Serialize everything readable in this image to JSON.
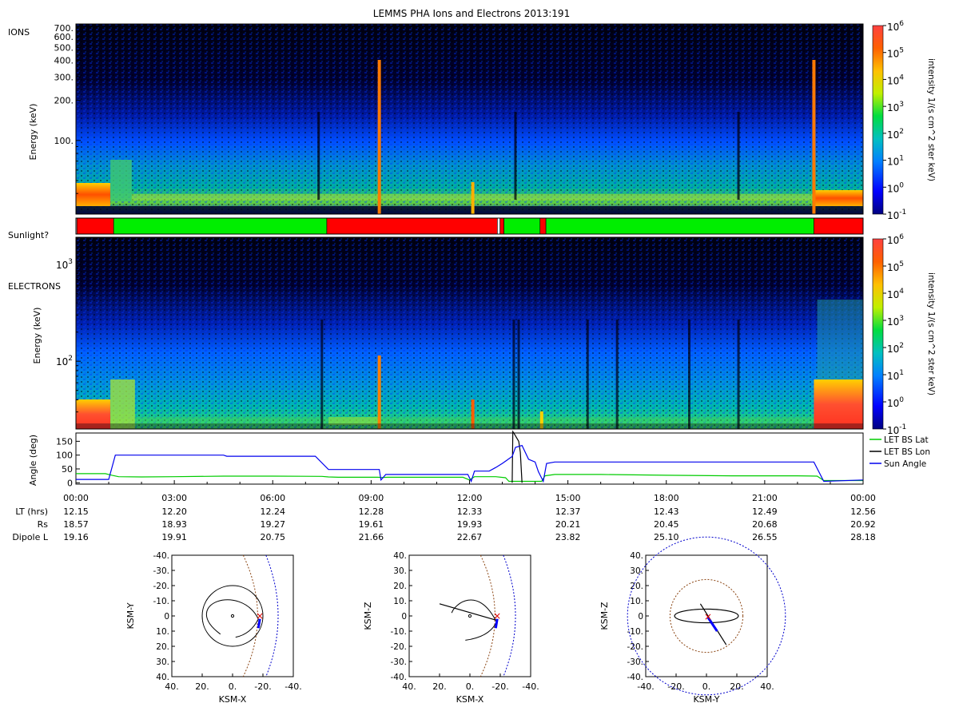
{
  "title": "LEMMS PHA Ions and Electrons  2013:191",
  "ions_panel": {
    "label": "IONS",
    "ylabel": "Energy (keV)",
    "yticks": [
      "700.",
      "600.",
      "500.",
      "400.",
      "300.",
      "200.",
      "100."
    ],
    "ytick_values": [
      700,
      600,
      500,
      400,
      300,
      200,
      100
    ],
    "yrange": [
      28,
      750
    ],
    "colorbar_label": "intensity 1/(s cm^2 ster keV)"
  },
  "sunlight_panel": {
    "label": "Sunlight?",
    "segments": [
      {
        "start_hr": 0.0,
        "end_hr": 0.03,
        "state": "unknown"
      },
      {
        "start_hr": 0.03,
        "end_hr": 1.15,
        "state": "dark"
      },
      {
        "start_hr": 1.15,
        "end_hr": 7.65,
        "state": "sun"
      },
      {
        "start_hr": 7.65,
        "end_hr": 12.85,
        "state": "dark"
      },
      {
        "start_hr": 12.85,
        "end_hr": 12.93,
        "state": "unknown"
      },
      {
        "start_hr": 12.93,
        "end_hr": 13.05,
        "state": "dark"
      },
      {
        "start_hr": 13.05,
        "end_hr": 14.15,
        "state": "sun"
      },
      {
        "start_hr": 14.15,
        "end_hr": 14.33,
        "state": "dark"
      },
      {
        "start_hr": 14.33,
        "end_hr": 22.5,
        "state": "sun"
      },
      {
        "start_hr": 22.5,
        "end_hr": 24.0,
        "state": "dark"
      }
    ],
    "colors": {
      "sun": "#00ee00",
      "dark": "#ff0000",
      "unknown": "#ffffff"
    }
  },
  "electrons_panel": {
    "label": "ELECTRONS",
    "ylabel": "Energy (keV)",
    "yticks": [
      {
        "base": "10",
        "exp": "3",
        "value": 1000
      },
      {
        "base": "10",
        "exp": "2",
        "value": 100
      }
    ],
    "yrange": [
      20,
      1900
    ],
    "colorbar_label": "intensity 1/(s cm^2 ster keV)"
  },
  "colorbar": {
    "ticks": [
      {
        "base": "10",
        "exp": "6"
      },
      {
        "base": "10",
        "exp": "5"
      },
      {
        "base": "10",
        "exp": "4"
      },
      {
        "base": "10",
        "exp": "3"
      },
      {
        "base": "10",
        "exp": "2"
      },
      {
        "base": "10",
        "exp": "1"
      },
      {
        "base": "10",
        "exp": "0"
      },
      {
        "base": "10",
        "exp": "-1"
      }
    ],
    "range_log10": [
      -1,
      6
    ]
  },
  "chart_data": [
    {
      "type": "heatmap",
      "title": "LEMMS PHA Ions and Electrons  2013:191",
      "name": "IONS",
      "ylabel": "Energy (keV)",
      "ylim": [
        28,
        750
      ],
      "xlim_hr": [
        0,
        24
      ],
      "zlabel": "intensity 1/(s cm^2 ster keV)",
      "zlim_log10": [
        -1,
        6
      ]
    },
    {
      "type": "heatmap",
      "name": "ELECTRONS",
      "ylabel": "Energy (keV)",
      "ylim": [
        20,
        1900
      ],
      "xlim_hr": [
        0,
        24
      ],
      "zlabel": "intensity 1/(s cm^2 ster keV)",
      "zlim_log10": [
        -1,
        6
      ]
    },
    {
      "type": "line",
      "ylabel": "Angle (deg)",
      "yticks": [
        0,
        50,
        100,
        150
      ],
      "ylim": [
        -5,
        180
      ],
      "xlim_hr": [
        0,
        24
      ],
      "series": [
        {
          "name": "LET BS Lat",
          "color": "#00cc00",
          "points": [
            [
              0,
              33
            ],
            [
              0.9,
              33
            ],
            [
              1.1,
              27
            ],
            [
              1.3,
              22
            ],
            [
              2,
              21
            ],
            [
              3,
              22
            ],
            [
              4.5,
              24
            ],
            [
              6,
              24
            ],
            [
              7.5,
              23
            ],
            [
              7.7,
              21
            ],
            [
              8,
              20
            ],
            [
              9.2,
              20
            ],
            [
              9.35,
              19
            ],
            [
              9.5,
              20
            ],
            [
              11.8,
              20
            ],
            [
              12.0,
              10
            ],
            [
              12.15,
              22
            ],
            [
              12.8,
              22
            ],
            [
              13.1,
              18
            ],
            [
              13.2,
              5
            ],
            [
              13.6,
              5
            ],
            [
              14.2,
              5
            ],
            [
              14.3,
              25
            ],
            [
              14.6,
              30
            ],
            [
              16,
              30
            ],
            [
              18,
              27
            ],
            [
              20,
              25
            ],
            [
              22,
              25
            ],
            [
              22.6,
              24
            ],
            [
              22.8,
              8
            ],
            [
              24,
              8
            ]
          ]
        },
        {
          "name": "LET BS Lon",
          "color": "#000000",
          "points": [
            [
              13.3,
              0
            ],
            [
              13.32,
              185
            ],
            [
              13.35,
              180
            ],
            [
              13.45,
              160
            ],
            [
              13.5,
              150
            ],
            [
              13.55,
              110
            ],
            [
              13.6,
              0
            ]
          ]
        },
        {
          "name": "Sun Angle",
          "color": "#0000ee",
          "points": [
            [
              0,
              12
            ],
            [
              1.0,
              12
            ],
            [
              1.2,
              100
            ],
            [
              4.5,
              100
            ],
            [
              4.6,
              96
            ],
            [
              7.3,
              96
            ],
            [
              7.7,
              48
            ],
            [
              9.25,
              48
            ],
            [
              9.3,
              10
            ],
            [
              9.45,
              30
            ],
            [
              11.95,
              30
            ],
            [
              12.05,
              5
            ],
            [
              12.15,
              42
            ],
            [
              12.6,
              42
            ],
            [
              12.8,
              55
            ],
            [
              13.0,
              70
            ],
            [
              13.3,
              95
            ],
            [
              13.4,
              128
            ],
            [
              13.6,
              135
            ],
            [
              13.8,
              85
            ],
            [
              14.0,
              75
            ],
            [
              14.1,
              40
            ],
            [
              14.25,
              5
            ],
            [
              14.35,
              70
            ],
            [
              14.6,
              75
            ],
            [
              22.5,
              75
            ],
            [
              22.8,
              5
            ],
            [
              24,
              10
            ]
          ]
        }
      ]
    },
    {
      "type": "scatter",
      "name": "orbit-xy",
      "xlabel": "KSM-X",
      "ylabel": "KSM-Y",
      "xticks": [
        "40.",
        "20.",
        "0.",
        "-20.",
        "-40."
      ],
      "yticks": [
        "-40.",
        "-30.",
        "-20.",
        "-10.",
        "0",
        "10.",
        "20.",
        "30.",
        "40."
      ],
      "xlim": [
        40,
        -40
      ],
      "ylim": [
        -40,
        40
      ]
    },
    {
      "type": "scatter",
      "name": "orbit-xz",
      "xlabel": "KSM-X",
      "ylabel": "KSM-Z",
      "xticks": [
        "40.",
        "20.",
        "0.",
        "-20.",
        "-40."
      ],
      "yticks": [
        "40.",
        "30.",
        "20.",
        "10.",
        "0",
        "-10.",
        "-20.",
        "-30.",
        "-40."
      ],
      "xlim": [
        40,
        -40
      ],
      "ylim": [
        40,
        -40
      ]
    },
    {
      "type": "scatter",
      "name": "orbit-yz",
      "xlabel": "KSM-Y",
      "ylabel": "KSM-Z",
      "xticks": [
        "-40.",
        "-20.",
        "0.",
        "20.",
        "40."
      ],
      "yticks": [
        "40.",
        "30.",
        "20.",
        "10.",
        "0",
        "-10.",
        "-20.",
        "-30.",
        "-40."
      ],
      "xlim": [
        -40,
        40
      ],
      "ylim": [
        40,
        -40
      ]
    }
  ],
  "angle_panel": {
    "ylabel": "Angle (deg)",
    "yticks": [
      "150",
      "100",
      "50",
      "0"
    ],
    "legend": [
      "LET BS Lat",
      "LET BS Lon",
      "Sun Angle"
    ]
  },
  "time_axis": {
    "labels": [
      "00:00",
      "03:00",
      "06:00",
      "09:00",
      "12:00",
      "15:00",
      "18:00",
      "21:00",
      "00:00"
    ],
    "rows": [
      {
        "label": "LT (hrs)",
        "values": [
          "12.15",
          "12.20",
          "12.24",
          "12.28",
          "12.33",
          "12.37",
          "12.43",
          "12.49",
          "12.56"
        ]
      },
      {
        "label": "Rs",
        "values": [
          "18.57",
          "18.93",
          "19.27",
          "19.61",
          "19.93",
          "20.21",
          "20.45",
          "20.68",
          "20.92"
        ]
      },
      {
        "label": "Dipole L",
        "values": [
          "19.16",
          "19.91",
          "20.75",
          "21.66",
          "22.67",
          "23.82",
          "25.10",
          "26.55",
          "28.18"
        ]
      }
    ]
  }
}
